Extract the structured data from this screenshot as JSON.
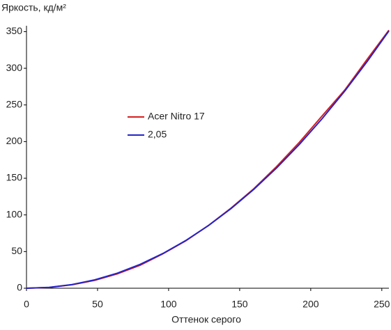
{
  "chart_data": {
    "type": "line",
    "y_label": "Яркость, кд/м²",
    "x_label": "Оттенок серого",
    "x": [
      0,
      16,
      32,
      48,
      64,
      80,
      96,
      112,
      128,
      144,
      160,
      176,
      192,
      208,
      224,
      240,
      255
    ],
    "series": [
      {
        "name": "Acer Nitro 17",
        "color": "#d61e1e",
        "values": [
          0,
          1.1,
          4.7,
          10.8,
          19.6,
          31.4,
          47.0,
          64.6,
          85.6,
          109.4,
          135.8,
          166.0,
          199.0,
          235.0,
          270.5,
          313.0,
          352
        ]
      },
      {
        "name": "2,05",
        "color": "#2424c8",
        "values": [
          0,
          1.2,
          5.0,
          11.4,
          20.6,
          32.6,
          47.4,
          65.0,
          85.4,
          108.8,
          135.0,
          164.1,
          196.2,
          231.2,
          269.1,
          310.0,
          351
        ]
      }
    ],
    "xlim": [
      0,
      255
    ],
    "xticks": [
      0,
      50,
      100,
      150,
      200,
      250
    ],
    "ylim": [
      0,
      358
    ],
    "yticks": [
      0,
      50,
      100,
      150,
      200,
      250,
      300,
      350
    ],
    "legend": "center"
  }
}
